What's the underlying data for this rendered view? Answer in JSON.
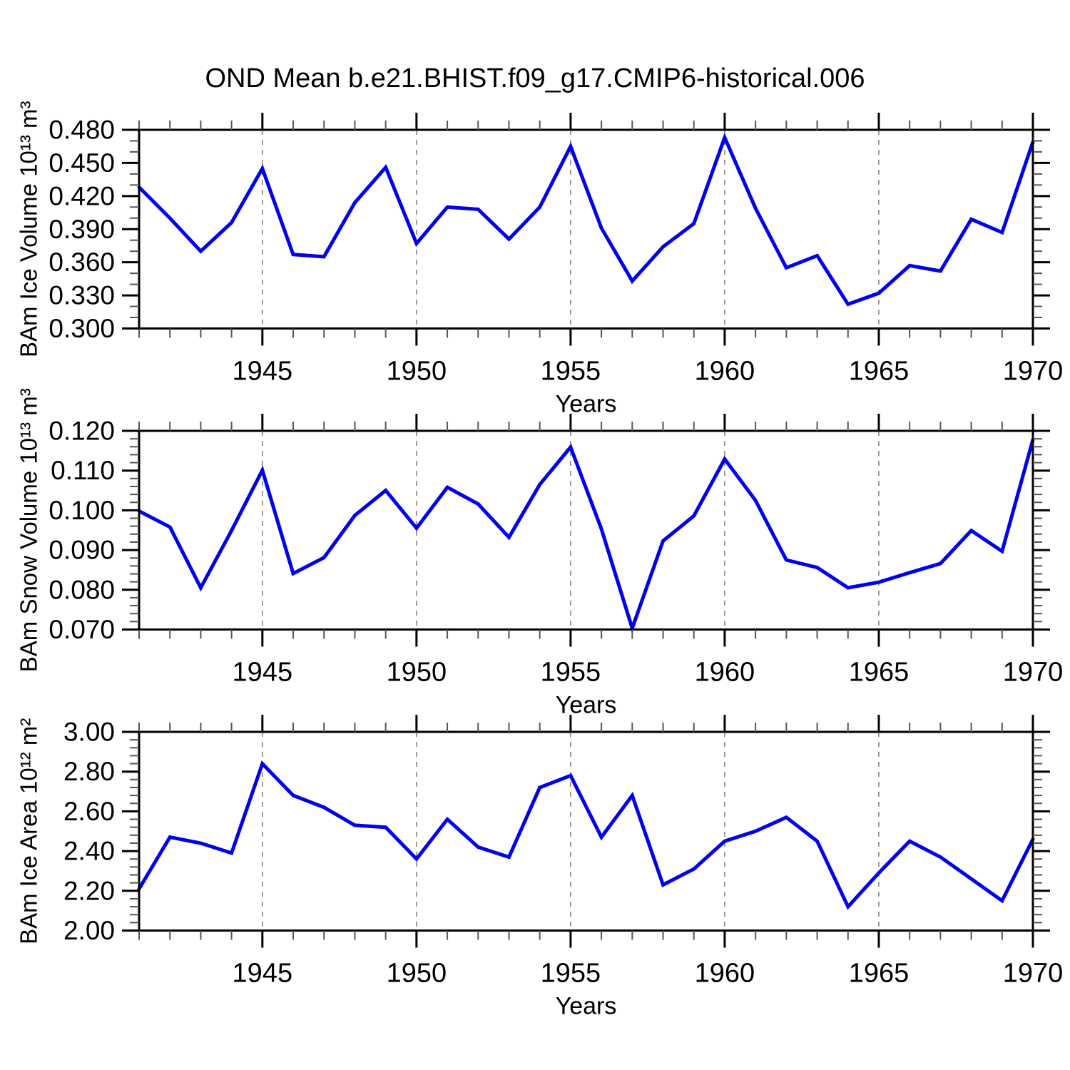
{
  "title": "OND Mean b.e21.BHIST.f09_g17.CMIP6-historical.006",
  "colors": {
    "line": "#0000ee",
    "grid": "#888888",
    "axis": "#000000",
    "minor_tick": "#555555",
    "background": "#ffffff"
  },
  "x_axis": {
    "label": "Years",
    "years": [
      1941,
      1942,
      1943,
      1944,
      1945,
      1946,
      1947,
      1948,
      1949,
      1950,
      1951,
      1952,
      1953,
      1954,
      1955,
      1956,
      1957,
      1958,
      1959,
      1960,
      1961,
      1962,
      1963,
      1964,
      1965,
      1966,
      1967,
      1968,
      1969,
      1970
    ],
    "major_ticks": [
      1945,
      1950,
      1955,
      1960,
      1965,
      1970
    ],
    "major_tick_labels": [
      "1945",
      "1950",
      "1955",
      "1960",
      "1965",
      "1970"
    ],
    "gridline_years": [
      1945,
      1950,
      1955,
      1960,
      1965
    ]
  },
  "chart_data": [
    {
      "type": "line",
      "name": "bam-ice-volume",
      "ylabel": "BAm Ice Volume 10¹³ m³",
      "ylim": [
        0.3,
        0.48
      ],
      "yticks": [
        0.3,
        0.33,
        0.36,
        0.39,
        0.42,
        0.45,
        0.48
      ],
      "ytick_labels": [
        "0.300",
        "0.330",
        "0.360",
        "0.390",
        "0.420",
        "0.450",
        "0.480"
      ],
      "y_minor_step": 0.01,
      "x": [
        1941,
        1942,
        1943,
        1944,
        1945,
        1946,
        1947,
        1948,
        1949,
        1950,
        1951,
        1952,
        1953,
        1954,
        1955,
        1956,
        1957,
        1958,
        1959,
        1960,
        1961,
        1962,
        1963,
        1964,
        1965,
        1966,
        1967,
        1968,
        1969,
        1970
      ],
      "values": [
        0.428,
        0.4,
        0.37,
        0.396,
        0.445,
        0.367,
        0.365,
        0.414,
        0.446,
        0.377,
        0.41,
        0.408,
        0.381,
        0.41,
        0.465,
        0.391,
        0.343,
        0.374,
        0.395,
        0.473,
        0.409,
        0.355,
        0.366,
        0.322,
        0.332,
        0.357,
        0.352,
        0.399,
        0.387,
        0.469
      ]
    },
    {
      "type": "line",
      "name": "bam-snow-volume",
      "ylabel": "BAm Snow Volume 10¹³ m³",
      "ylim": [
        0.07,
        0.12
      ],
      "yticks": [
        0.07,
        0.08,
        0.09,
        0.1,
        0.11,
        0.12
      ],
      "ytick_labels": [
        "0.070",
        "0.080",
        "0.090",
        "0.100",
        "0.110",
        "0.120"
      ],
      "y_minor_step": 0.002,
      "x": [
        1941,
        1942,
        1943,
        1944,
        1945,
        1946,
        1947,
        1948,
        1949,
        1950,
        1951,
        1952,
        1953,
        1954,
        1955,
        1956,
        1957,
        1958,
        1959,
        1960,
        1961,
        1962,
        1963,
        1964,
        1965,
        1966,
        1967,
        1968,
        1969,
        1970
      ],
      "values": [
        0.0998,
        0.0958,
        0.0805,
        0.0949,
        0.1101,
        0.0841,
        0.0881,
        0.0987,
        0.105,
        0.0955,
        0.1058,
        0.1016,
        0.0932,
        0.1065,
        0.1159,
        0.0953,
        0.0703,
        0.0923,
        0.0986,
        0.1129,
        0.1025,
        0.0875,
        0.0856,
        0.0805,
        0.0819,
        0.0843,
        0.0866,
        0.0949,
        0.0897,
        0.1178
      ]
    },
    {
      "type": "line",
      "name": "bam-ice-area",
      "ylabel": "BAm Ice Area 10¹² m²",
      "ylim": [
        2.0,
        3.0
      ],
      "yticks": [
        2.0,
        2.2,
        2.4,
        2.6,
        2.8,
        3.0
      ],
      "ytick_labels": [
        "2.00",
        "2.20",
        "2.40",
        "2.60",
        "2.80",
        "3.00"
      ],
      "y_minor_step": 0.04,
      "x": [
        1941,
        1942,
        1943,
        1944,
        1945,
        1946,
        1947,
        1948,
        1949,
        1950,
        1951,
        1952,
        1953,
        1954,
        1955,
        1956,
        1957,
        1958,
        1959,
        1960,
        1961,
        1962,
        1963,
        1964,
        1965,
        1966,
        1967,
        1968,
        1969,
        1970
      ],
      "values": [
        2.21,
        2.47,
        2.44,
        2.39,
        2.84,
        2.68,
        2.62,
        2.53,
        2.52,
        2.36,
        2.56,
        2.42,
        2.37,
        2.72,
        2.78,
        2.47,
        2.68,
        2.23,
        2.31,
        2.45,
        2.5,
        2.57,
        2.45,
        2.12,
        2.29,
        2.45,
        2.37,
        2.26,
        2.15,
        2.46
      ]
    }
  ]
}
